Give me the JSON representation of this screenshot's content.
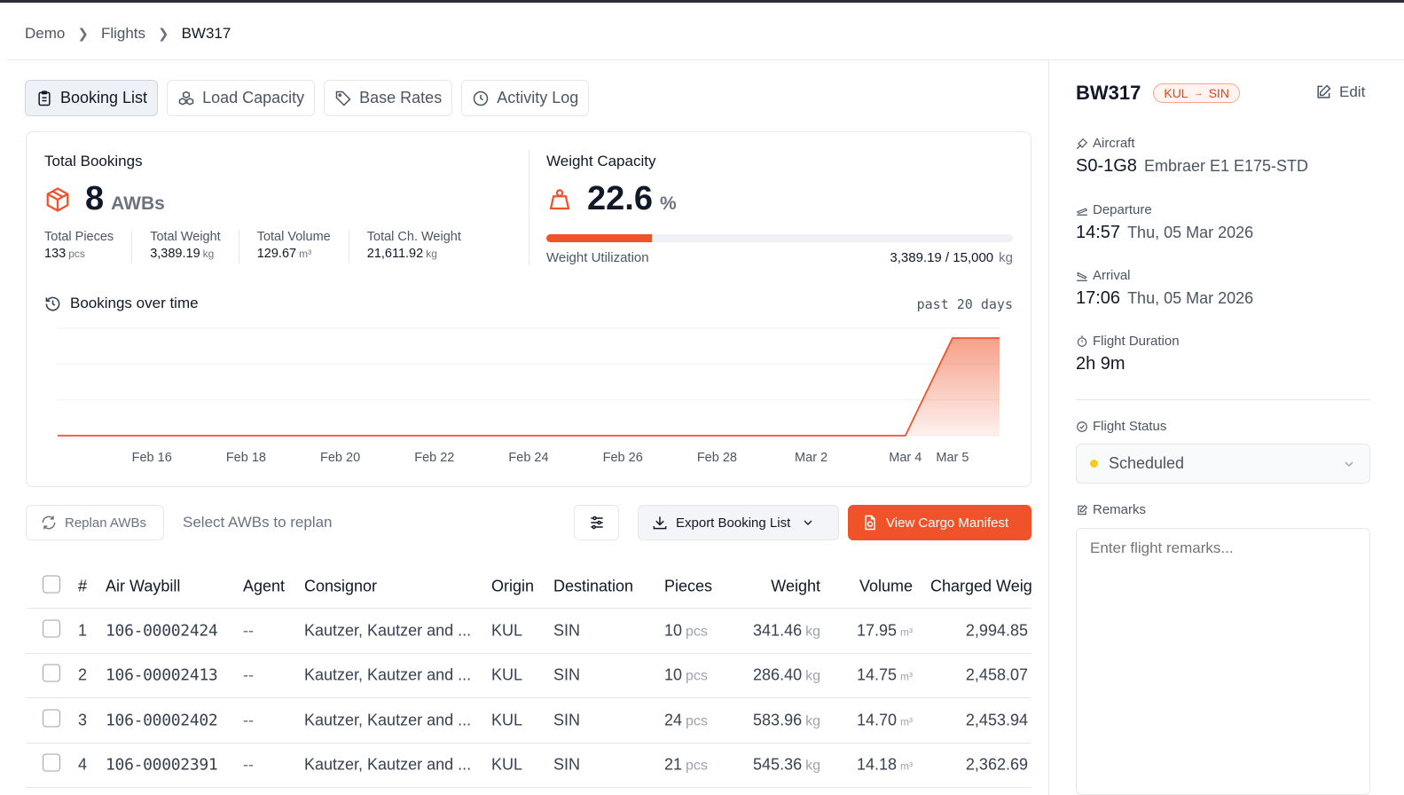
{
  "breadcrumb": {
    "items": [
      "Demo",
      "Flights"
    ],
    "current": "BW317"
  },
  "tabs": [
    "Booking List",
    "Load Capacity",
    "Base Rates",
    "Activity Log"
  ],
  "summary": {
    "total_bookings_label": "Total Bookings",
    "total_bookings_value": "8",
    "total_bookings_unit": "AWBs",
    "stats": [
      {
        "label": "Total Pieces",
        "value": "133",
        "unit": "pcs"
      },
      {
        "label": "Total Weight",
        "value": "3,389.19",
        "unit": "kg"
      },
      {
        "label": "Total Volume",
        "value": "129.67",
        "unit": "m³"
      },
      {
        "label": "Total Ch. Weight",
        "value": "21,611.92",
        "unit": "kg"
      }
    ],
    "weight_capacity_label": "Weight Capacity",
    "weight_capacity_value": "22.6",
    "weight_capacity_unit": "%",
    "weight_utilization_fraction": 0.226,
    "weight_utilization_label": "Weight Utilization",
    "weight_utilization_value": "3,389.19 / 15,000",
    "weight_utilization_unit": "kg"
  },
  "bookings_chart": {
    "title": "Bookings over time",
    "range": "past 20 days"
  },
  "chart_data": {
    "type": "area",
    "x": [
      "Feb 14",
      "Feb 15",
      "Feb 16",
      "Feb 17",
      "Feb 18",
      "Feb 19",
      "Feb 20",
      "Feb 21",
      "Feb 22",
      "Feb 23",
      "Feb 24",
      "Feb 25",
      "Feb 26",
      "Feb 27",
      "Feb 28",
      "Mar 1",
      "Mar 2",
      "Mar 3",
      "Mar 4",
      "Mar 5",
      "Mar 6"
    ],
    "values": [
      0,
      0,
      0,
      0,
      0,
      0,
      0,
      0,
      0,
      0,
      0,
      0,
      0,
      0,
      0,
      0,
      0,
      0,
      0,
      8,
      8
    ],
    "tick_labels": [
      "Feb 16",
      "Feb 18",
      "Feb 20",
      "Feb 22",
      "Feb 24",
      "Feb 26",
      "Feb 28",
      "Mar 2",
      "Mar 4",
      "Mar 5"
    ],
    "color": "#f0522a",
    "grid": true
  },
  "toolbar": {
    "replan_label": "Replan AWBs",
    "select_placeholder": "Select AWBs to replan",
    "export_label": "Export Booking List",
    "manifest_label": "View Cargo Manifest"
  },
  "table": {
    "headers": [
      "#",
      "Air Waybill",
      "Agent",
      "Consignor",
      "Origin",
      "Destination",
      "Pieces",
      "Weight",
      "Volume",
      "Charged Weig"
    ],
    "rows": [
      {
        "n": "1",
        "awb": "106-00002424",
        "agent": "--",
        "consignor": "Kautzer, Kautzer and ...",
        "origin": "KUL",
        "dest": "SIN",
        "pieces": "10",
        "weight": "341.46",
        "volume": "17.95",
        "charged": "2,994.85"
      },
      {
        "n": "2",
        "awb": "106-00002413",
        "agent": "--",
        "consignor": "Kautzer, Kautzer and ...",
        "origin": "KUL",
        "dest": "SIN",
        "pieces": "10",
        "weight": "286.40",
        "volume": "14.75",
        "charged": "2,458.07"
      },
      {
        "n": "3",
        "awb": "106-00002402",
        "agent": "--",
        "consignor": "Kautzer, Kautzer and ...",
        "origin": "KUL",
        "dest": "SIN",
        "pieces": "24",
        "weight": "583.96",
        "volume": "14.70",
        "charged": "2,453.94"
      },
      {
        "n": "4",
        "awb": "106-00002391",
        "agent": "--",
        "consignor": "Kautzer, Kautzer and ...",
        "origin": "KUL",
        "dest": "SIN",
        "pieces": "21",
        "weight": "545.36",
        "volume": "14.18",
        "charged": "2,362.69"
      }
    ],
    "units": {
      "pieces": "pcs",
      "weight": "kg",
      "volume": "m³"
    }
  },
  "flight": {
    "code": "BW317",
    "origin": "KUL",
    "arrow": "→",
    "destination": "SIN",
    "edit_label": "Edit",
    "aircraft_label": "Aircraft",
    "aircraft_reg": "S0-1G8",
    "aircraft_type": "Embraer E1 E175-STD",
    "departure_label": "Departure",
    "departure_time": "14:57",
    "departure_date": "Thu, 05 Mar 2026",
    "arrival_label": "Arrival",
    "arrival_time": "17:06",
    "arrival_date": "Thu, 05 Mar 2026",
    "duration_label": "Flight Duration",
    "duration": "2h 9m",
    "status_label": "Flight Status",
    "status": "Scheduled",
    "remarks_label": "Remarks",
    "remarks_placeholder": "Enter flight remarks..."
  },
  "colors": {
    "accent": "#f0522a",
    "status_dot": "#facc15"
  }
}
